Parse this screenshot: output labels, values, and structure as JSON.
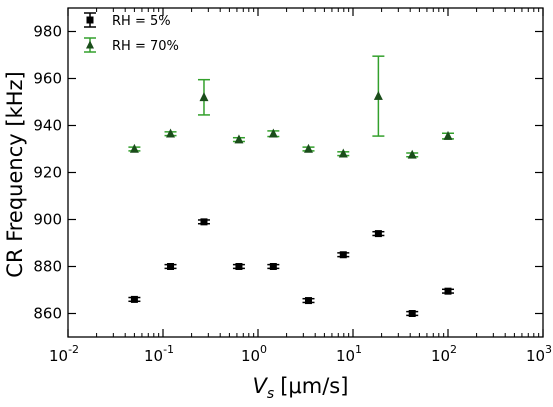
{
  "chart_data": {
    "type": "scatter",
    "title": "",
    "xlabel": "V_s [μm/s]",
    "xlabel_parts": {
      "symbol": "V",
      "subscript": "s",
      "unit": "[μm/s]"
    },
    "ylabel": "CR Frequency [kHz]",
    "xscale": "log",
    "xlim": [
      0.01,
      1000
    ],
    "ylim": [
      850,
      990
    ],
    "x_ticks": [
      {
        "value": 0.01,
        "base": "10",
        "exp": "-2"
      },
      {
        "value": 0.1,
        "base": "10",
        "exp": "-1"
      },
      {
        "value": 1,
        "base": "10",
        "exp": "0"
      },
      {
        "value": 10,
        "base": "10",
        "exp": "1"
      },
      {
        "value": 100,
        "base": "10",
        "exp": "2"
      },
      {
        "value": 1000,
        "base": "10",
        "exp": "3"
      }
    ],
    "y_ticks": [
      860,
      880,
      900,
      920,
      940,
      960,
      980
    ],
    "grid": false,
    "legend": "top-left",
    "series": [
      {
        "name": "RH = 5%",
        "marker": "square",
        "color": "#000000",
        "points": [
          {
            "x": 0.05,
            "y": 866,
            "err": 0.8
          },
          {
            "x": 0.12,
            "y": 880,
            "err": 0.8
          },
          {
            "x": 0.27,
            "y": 899,
            "err": 0.8
          },
          {
            "x": 0.63,
            "y": 880,
            "err": 0.8
          },
          {
            "x": 1.45,
            "y": 880,
            "err": 0.8
          },
          {
            "x": 3.4,
            "y": 865.5,
            "err": 0.8
          },
          {
            "x": 7.9,
            "y": 885,
            "err": 0.8
          },
          {
            "x": 18.5,
            "y": 894,
            "err": 0.8
          },
          {
            "x": 42,
            "y": 860,
            "err": 0.8
          },
          {
            "x": 100,
            "y": 869.5,
            "err": 0.8
          }
        ]
      },
      {
        "name": "RH = 70%",
        "marker": "triangle",
        "color": "#1a4d1a",
        "errcolor": "#33a02c",
        "points": [
          {
            "x": 0.05,
            "y": 930,
            "err": 0.8
          },
          {
            "x": 0.12,
            "y": 936.5,
            "err": 0.8
          },
          {
            "x": 0.27,
            "y": 952,
            "err": 7.5
          },
          {
            "x": 0.63,
            "y": 934,
            "err": 0.8
          },
          {
            "x": 1.45,
            "y": 936.5,
            "err": 1.2
          },
          {
            "x": 3.4,
            "y": 930,
            "err": 0.8
          },
          {
            "x": 7.9,
            "y": 928,
            "err": 0.8
          },
          {
            "x": 18.5,
            "y": 952.5,
            "err": 17
          },
          {
            "x": 42,
            "y": 927.5,
            "err": 0.8
          },
          {
            "x": 100,
            "y": 935.5,
            "err": 1.2
          }
        ]
      }
    ]
  }
}
